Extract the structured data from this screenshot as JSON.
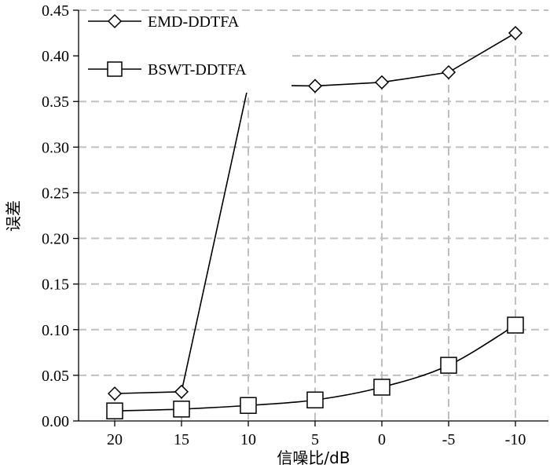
{
  "chart_data": {
    "type": "line",
    "categories": [
      "20",
      "15",
      "10",
      "5",
      "0",
      "-5",
      "-10"
    ],
    "series": [
      {
        "name": "EMD-DDTFA",
        "marker": "diamond",
        "values": [
          0.03,
          0.032,
          0.368,
          0.367,
          0.371,
          0.382,
          0.425
        ]
      },
      {
        "name": "BSWT-DDTFA",
        "marker": "square",
        "values": [
          0.011,
          0.013,
          0.017,
          0.023,
          0.037,
          0.061,
          0.105
        ]
      }
    ],
    "title": "",
    "xlabel": "信噪比/dB",
    "ylabel": "误差",
    "ylim": [
      0,
      0.45
    ],
    "yticks": [
      "0.00",
      "0.05",
      "0.10",
      "0.15",
      "0.20",
      "0.25",
      "0.30",
      "0.35",
      "0.40",
      "0.45"
    ],
    "grid": true,
    "legend_position": "top-left",
    "colors": {
      "line": "#000000",
      "grid": "#c0c0c0",
      "marker_fill": "#ffffff"
    }
  }
}
